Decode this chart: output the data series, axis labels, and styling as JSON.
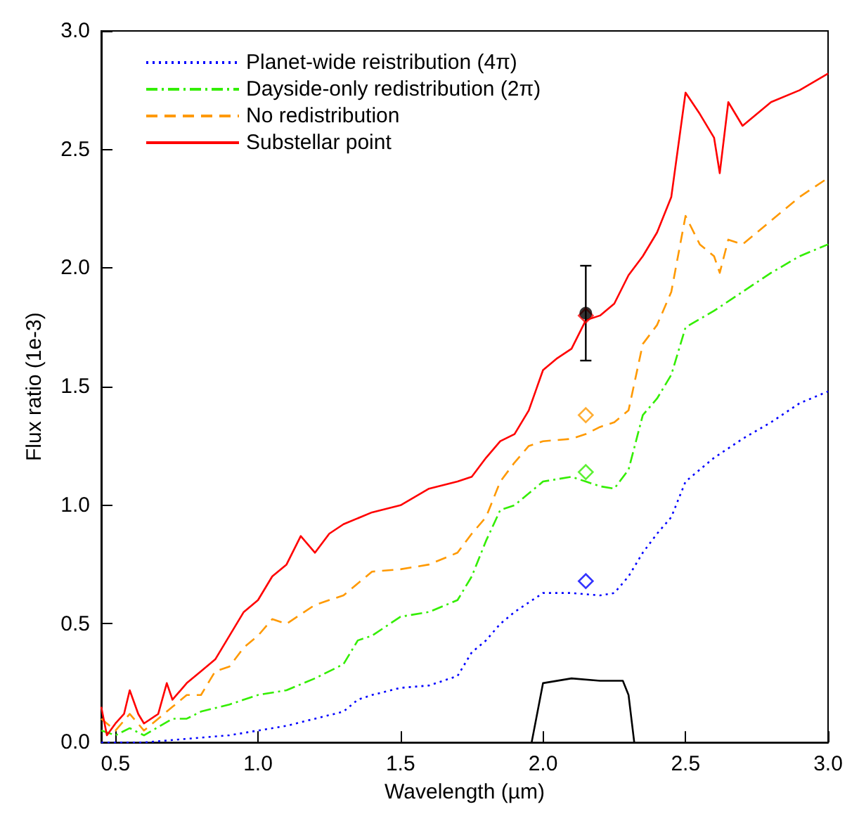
{
  "chart_data": {
    "type": "line",
    "xlabel": "Wavelength (µm)",
    "ylabel": "Flux ratio (1e-3)",
    "xlim": [
      0.45,
      3.0
    ],
    "ylim": [
      0,
      3.0
    ],
    "xticks": [
      0.5,
      {
        "value": 1,
        "label": "1.0"
      },
      1.5,
      {
        "value": 2,
        "label": "2.0"
      },
      2.5,
      {
        "value": 3,
        "label": "3.0"
      }
    ],
    "yticks": [
      {
        "value": 0,
        "label": "0.0"
      },
      0.5,
      {
        "value": 1,
        "label": "1.0"
      },
      1.5,
      {
        "value": 2,
        "label": "2.0"
      },
      2.5,
      {
        "value": 3,
        "label": "3.0"
      }
    ],
    "grid": false,
    "legend": "top left",
    "marker": "none",
    "series": [
      {
        "name": "Planet-wide reistribution (4π)",
        "color": "#0000ff",
        "line_style": "dotted",
        "x": [
          0.45,
          0.5,
          0.6,
          0.8,
          0.9,
          1.0,
          1.1,
          1.2,
          1.3,
          1.35,
          1.4,
          1.5,
          1.6,
          1.7,
          1.75,
          1.8,
          1.85,
          1.9,
          2.0,
          2.1,
          2.2,
          2.25,
          2.3,
          2.35,
          2.4,
          2.45,
          2.5,
          2.6,
          2.7,
          2.8,
          2.9,
          3.0
        ],
        "values": [
          0.0,
          0.0,
          0.0,
          0.02,
          0.03,
          0.05,
          0.07,
          0.1,
          0.13,
          0.18,
          0.2,
          0.23,
          0.24,
          0.28,
          0.38,
          0.43,
          0.5,
          0.55,
          0.63,
          0.63,
          0.62,
          0.63,
          0.7,
          0.8,
          0.88,
          0.95,
          1.1,
          1.2,
          1.28,
          1.35,
          1.43,
          1.48
        ]
      },
      {
        "name": "Dayside-only redistribution (2π)",
        "color": "#33ee00",
        "line_style": "dashdot",
        "x": [
          0.45,
          0.5,
          0.55,
          0.6,
          0.7,
          0.75,
          0.8,
          0.9,
          1.0,
          1.1,
          1.2,
          1.3,
          1.35,
          1.4,
          1.5,
          1.6,
          1.7,
          1.75,
          1.8,
          1.85,
          1.9,
          2.0,
          2.1,
          2.15,
          2.2,
          2.25,
          2.3,
          2.35,
          2.4,
          2.45,
          2.5,
          2.6,
          2.7,
          2.8,
          2.9,
          3.0
        ],
        "values": [
          0.05,
          0.03,
          0.06,
          0.03,
          0.1,
          0.1,
          0.13,
          0.16,
          0.2,
          0.22,
          0.27,
          0.33,
          0.43,
          0.45,
          0.53,
          0.55,
          0.6,
          0.7,
          0.85,
          0.98,
          1.0,
          1.1,
          1.12,
          1.1,
          1.08,
          1.07,
          1.15,
          1.38,
          1.45,
          1.55,
          1.75,
          1.82,
          1.9,
          1.98,
          2.05,
          2.1
        ]
      },
      {
        "name": "No redistribution",
        "color": "#ff9900",
        "line_style": "dashed",
        "x": [
          0.45,
          0.5,
          0.55,
          0.6,
          0.65,
          0.7,
          0.75,
          0.8,
          0.85,
          0.9,
          0.95,
          1.0,
          1.05,
          1.1,
          1.2,
          1.3,
          1.4,
          1.5,
          1.6,
          1.7,
          1.75,
          1.8,
          1.85,
          1.9,
          1.95,
          2.0,
          2.1,
          2.15,
          2.2,
          2.25,
          2.3,
          2.35,
          2.4,
          2.45,
          2.5,
          2.55,
          2.6,
          2.62,
          2.65,
          2.7,
          2.8,
          2.9,
          3.0
        ],
        "values": [
          0.1,
          0.05,
          0.12,
          0.05,
          0.1,
          0.15,
          0.2,
          0.2,
          0.3,
          0.32,
          0.4,
          0.45,
          0.52,
          0.5,
          0.58,
          0.62,
          0.72,
          0.73,
          0.75,
          0.8,
          0.88,
          0.95,
          1.1,
          1.18,
          1.25,
          1.27,
          1.28,
          1.3,
          1.33,
          1.35,
          1.4,
          1.68,
          1.76,
          1.9,
          2.22,
          2.1,
          2.05,
          1.98,
          2.12,
          2.1,
          2.2,
          2.3,
          2.38
        ]
      },
      {
        "name": "Substellar point",
        "color": "#ff0000",
        "line_style": "solid",
        "x": [
          0.45,
          0.47,
          0.5,
          0.53,
          0.55,
          0.58,
          0.6,
          0.65,
          0.68,
          0.7,
          0.75,
          0.8,
          0.85,
          0.9,
          0.95,
          1.0,
          1.05,
          1.1,
          1.15,
          1.2,
          1.25,
          1.3,
          1.4,
          1.5,
          1.6,
          1.7,
          1.75,
          1.8,
          1.85,
          1.9,
          1.95,
          2.0,
          2.05,
          2.1,
          2.15,
          2.2,
          2.25,
          2.3,
          2.35,
          2.4,
          2.45,
          2.5,
          2.55,
          2.6,
          2.62,
          2.65,
          2.7,
          2.8,
          2.9,
          3.0
        ],
        "values": [
          0.15,
          0.03,
          0.08,
          0.12,
          0.22,
          0.12,
          0.08,
          0.12,
          0.25,
          0.18,
          0.25,
          0.3,
          0.35,
          0.45,
          0.55,
          0.6,
          0.7,
          0.75,
          0.87,
          0.8,
          0.88,
          0.92,
          0.97,
          1.0,
          1.07,
          1.1,
          1.12,
          1.2,
          1.27,
          1.3,
          1.4,
          1.57,
          1.62,
          1.66,
          1.78,
          1.8,
          1.85,
          1.97,
          2.05,
          2.15,
          2.3,
          2.74,
          2.65,
          2.55,
          2.4,
          2.7,
          2.6,
          2.7,
          2.75,
          2.82
        ]
      },
      {
        "type": "scatter",
        "marker": "diamond",
        "color": "#0000ff",
        "x": [
          2.15
        ],
        "values": [
          0.68
        ]
      },
      {
        "type": "scatter",
        "marker": "diamond",
        "color": "#33ee00",
        "x": [
          2.15
        ],
        "values": [
          1.14
        ]
      },
      {
        "type": "scatter",
        "marker": "diamond",
        "color": "#ff9900",
        "x": [
          2.15
        ],
        "values": [
          1.38
        ]
      },
      {
        "type": "scatter",
        "marker": "diamond",
        "color": "#ff0000",
        "x": [
          2.15
        ],
        "values": [
          1.8
        ]
      },
      {
        "type": "scatter",
        "marker": "circle",
        "color": "#000000",
        "x": [
          2.15
        ],
        "values": [
          1.81
        ],
        "errors": [
          0.2
        ]
      },
      {
        "color": "#000000",
        "line_style": "solid",
        "x": [
          1.96,
          2.0,
          2.1,
          2.2,
          2.28,
          2.3,
          2.32
        ],
        "values": [
          0,
          0.25,
          0.27,
          0.26,
          0.26,
          0.2,
          0
        ]
      }
    ]
  }
}
